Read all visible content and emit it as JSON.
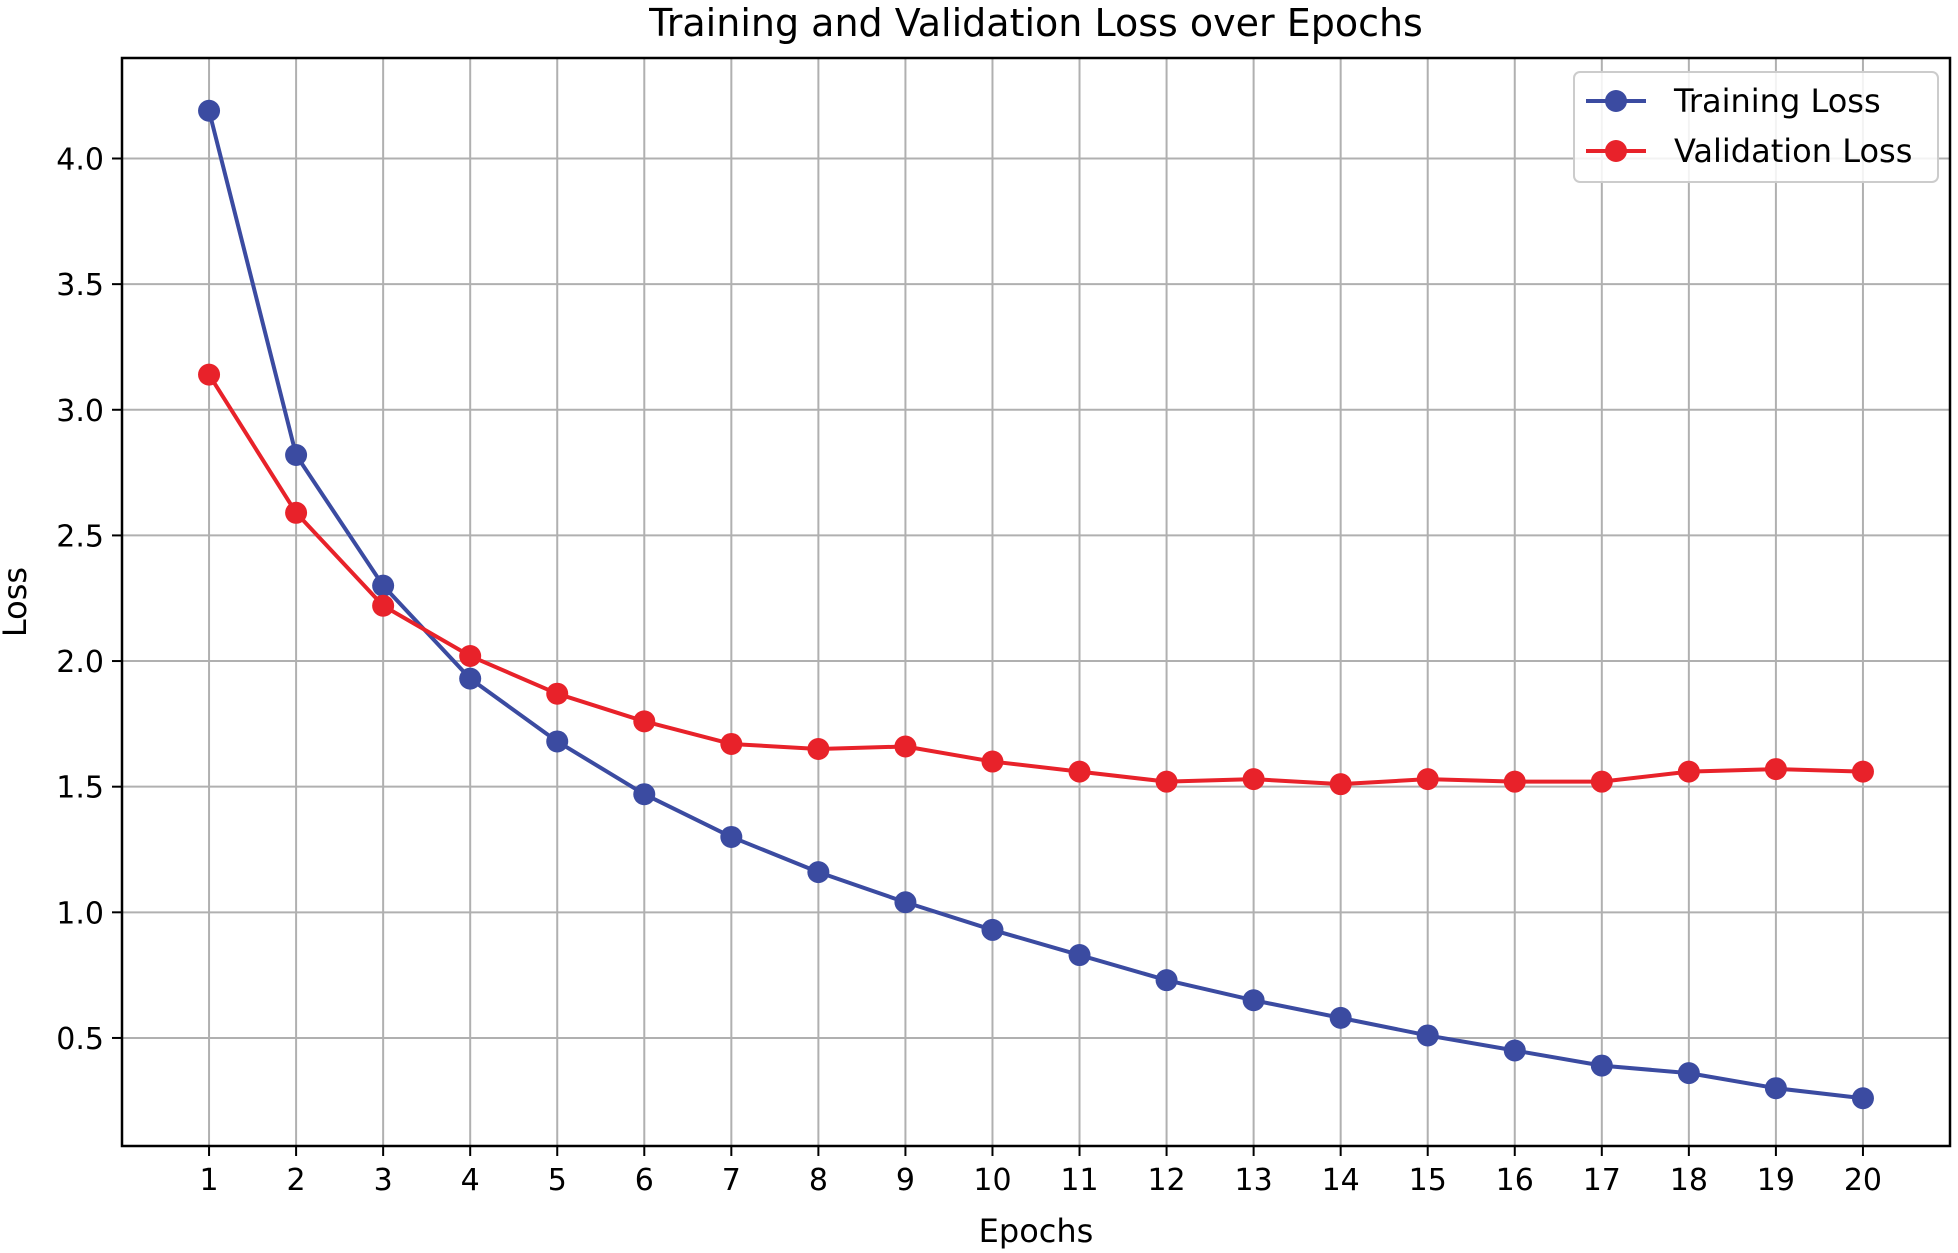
{
  "chart_data": {
    "type": "line",
    "title": "Training and Validation Loss over Epochs",
    "xlabel": "Epochs",
    "ylabel": "Loss",
    "x": [
      1,
      2,
      3,
      4,
      5,
      6,
      7,
      8,
      9,
      10,
      11,
      12,
      13,
      14,
      15,
      16,
      17,
      18,
      19,
      20
    ],
    "xlim": [
      0,
      21
    ],
    "ylim": [
      0.07,
      4.4
    ],
    "yticks": [
      0.5,
      1.0,
      1.5,
      2.0,
      2.5,
      3.0,
      3.5,
      4.0
    ],
    "ytick_labels": [
      "0.5",
      "1.0",
      "1.5",
      "2.0",
      "2.5",
      "3.0",
      "3.5",
      "4.0"
    ],
    "xtick_labels": [
      "1",
      "2",
      "3",
      "4",
      "5",
      "6",
      "7",
      "8",
      "9",
      "10",
      "11",
      "12",
      "13",
      "14",
      "15",
      "16",
      "17",
      "18",
      "19",
      "20"
    ],
    "grid": true,
    "legend_position": "top-right",
    "series": [
      {
        "name": "Training Loss",
        "color": "#3b4ba1",
        "values": [
          4.19,
          2.82,
          2.3,
          1.93,
          1.68,
          1.47,
          1.3,
          1.16,
          1.04,
          0.93,
          0.83,
          0.73,
          0.65,
          0.58,
          0.51,
          0.45,
          0.39,
          0.36,
          0.3,
          0.26
        ]
      },
      {
        "name": "Validation Loss",
        "color": "#e8222a",
        "values": [
          3.14,
          2.59,
          2.22,
          2.02,
          1.87,
          1.76,
          1.67,
          1.65,
          1.66,
          1.6,
          1.56,
          1.52,
          1.53,
          1.51,
          1.53,
          1.52,
          1.52,
          1.56,
          1.57,
          1.56
        ]
      }
    ]
  }
}
